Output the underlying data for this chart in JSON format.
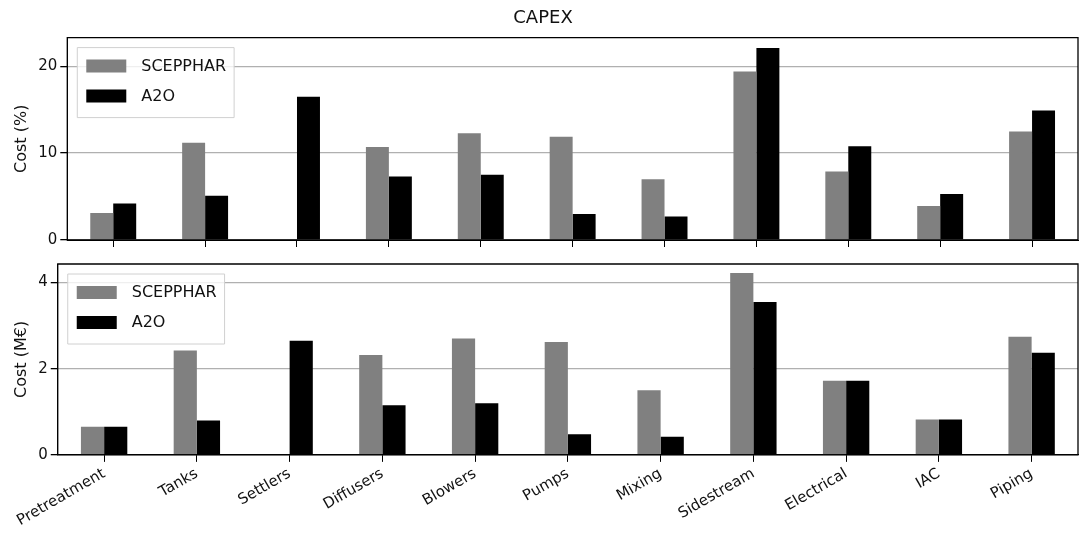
{
  "chart_data": [
    {
      "type": "bar",
      "title": "CAPEX",
      "ylabel": "Cost (%)",
      "categories": [
        null,
        null,
        null,
        null,
        null,
        null,
        null,
        null,
        null,
        null,
        null
      ],
      "series": [
        {
          "name": "SCEPPHAR",
          "color": "#808080",
          "values": [
            3.1,
            11.2,
            0,
            10.7,
            12.3,
            11.9,
            7.0,
            19.4,
            7.9,
            3.9,
            12.5
          ]
        },
        {
          "name": "A2O",
          "color": "#000000",
          "values": [
            4.2,
            5.1,
            16.5,
            7.3,
            7.5,
            3.0,
            2.7,
            22.1,
            10.8,
            5.3,
            14.9
          ]
        }
      ],
      "ylim": [
        0,
        23.3
      ],
      "yticks": [
        0,
        10,
        20
      ],
      "grid": "y",
      "legend": "top left",
      "tick_labels": "y"
    },
    {
      "type": "bar",
      "ylabel": "Cost (M€)",
      "categories": [
        "Pretreatment",
        "Tanks",
        "Settlers",
        "Diffusers",
        "Blowers",
        "Pumps",
        "Mixing",
        "Sidestream",
        "Electrical",
        "IAC",
        "Piping"
      ],
      "series": [
        {
          "name": "SCEPPHAR",
          "color": "#808080",
          "values": [
            0.65,
            2.42,
            0,
            2.32,
            2.7,
            2.62,
            1.5,
            4.22,
            1.72,
            0.82,
            2.74
          ]
        },
        {
          "name": "A2O",
          "color": "#000000",
          "values": [
            0.65,
            0.8,
            2.65,
            1.15,
            1.2,
            0.48,
            0.42,
            3.55,
            1.72,
            0.82,
            2.37
          ]
        }
      ],
      "ylim": [
        0,
        4.43
      ],
      "yticks": [
        0,
        2,
        4
      ],
      "grid": "y",
      "legend": "top left"
    }
  ]
}
